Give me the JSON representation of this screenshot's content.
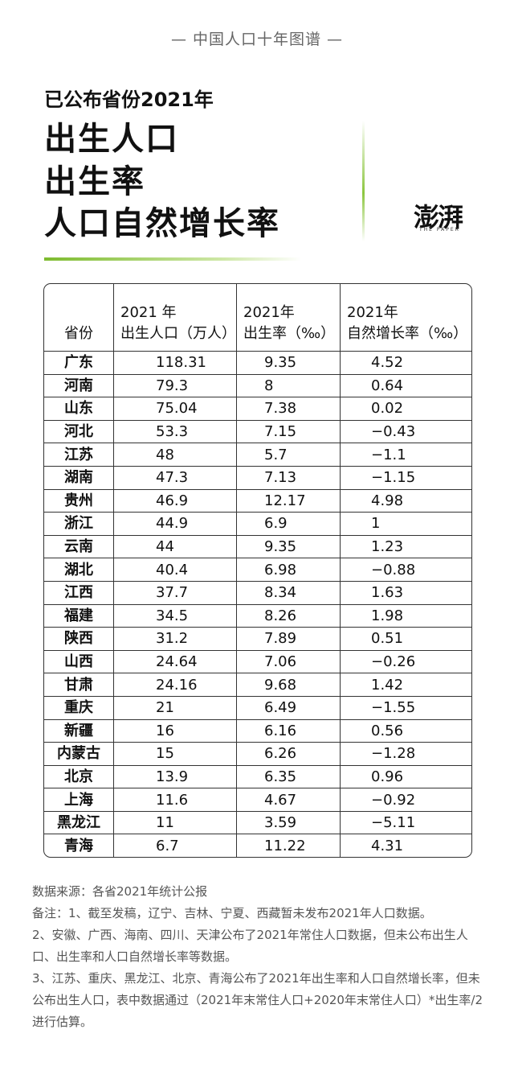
{
  "header": {
    "series": "— 中国人口十年图谱 —",
    "subtitle": "已公布省份2021年",
    "title_lines": [
      "出生人口",
      "出生率",
      "人口自然增长率"
    ],
    "logo": "澎湃",
    "logo_sub": "THE PAPER"
  },
  "table": {
    "header": [
      [
        "省份"
      ],
      [
        "2021 年",
        "出生人口（万人）"
      ],
      [
        "2021年",
        "出生率（‰）"
      ],
      [
        "2021年",
        "自然增长率（‰）"
      ]
    ],
    "rows": [
      [
        "广东",
        "118.31",
        "9.35",
        "4.52"
      ],
      [
        "河南",
        "79.3",
        "8",
        "0.64"
      ],
      [
        "山东",
        "75.04",
        "7.38",
        "0.02"
      ],
      [
        "河北",
        "53.3",
        "7.15",
        "−0.43"
      ],
      [
        "江苏",
        "48",
        "5.7",
        "−1.1"
      ],
      [
        "湖南",
        "47.3",
        "7.13",
        "−1.15"
      ],
      [
        "贵州",
        "46.9",
        "12.17",
        "4.98"
      ],
      [
        "浙江",
        "44.9",
        "6.9",
        "1"
      ],
      [
        "云南",
        "44",
        "9.35",
        "1.23"
      ],
      [
        "湖北",
        "40.4",
        "6.98",
        "−0.88"
      ],
      [
        "江西",
        "37.7",
        "8.34",
        "1.63"
      ],
      [
        "福建",
        "34.5",
        "8.26",
        "1.98"
      ],
      [
        "陕西",
        "31.2",
        "7.89",
        "0.51"
      ],
      [
        "山西",
        "24.64",
        "7.06",
        "−0.26"
      ],
      [
        "甘肃",
        "24.16",
        "9.68",
        "1.42"
      ],
      [
        "重庆",
        "21",
        "6.49",
        "−1.55"
      ],
      [
        "新疆",
        "16",
        "6.16",
        "0.56"
      ],
      [
        "内蒙古",
        "15",
        "6.26",
        "−1.28"
      ],
      [
        "北京",
        "13.9",
        "6.35",
        "0.96"
      ],
      [
        "上海",
        "11.6",
        "4.67",
        "−0.92"
      ],
      [
        "黑龙江",
        "11",
        "3.59",
        "−5.11"
      ],
      [
        "青海",
        "6.7",
        "11.22",
        "4.31"
      ]
    ]
  },
  "notes": [
    "数据来源：各省2021年统计公报",
    "备注：1、截至发稿，辽宁、吉林、宁夏、西藏暂未发布2021年人口数据。",
    "2、安徽、广西、海南、四川、天津公布了2021年常住人口数据，但未公布出生人口、出生率和人口自然增长率等数据。",
    "3、江苏、重庆、黑龙江、北京、青海公布了2021年出生率和人口自然增长率，但未公布出生人口，表中数据通过（2021年末常住人口+2020年末常住人口）*出生率/2进行估算。"
  ]
}
